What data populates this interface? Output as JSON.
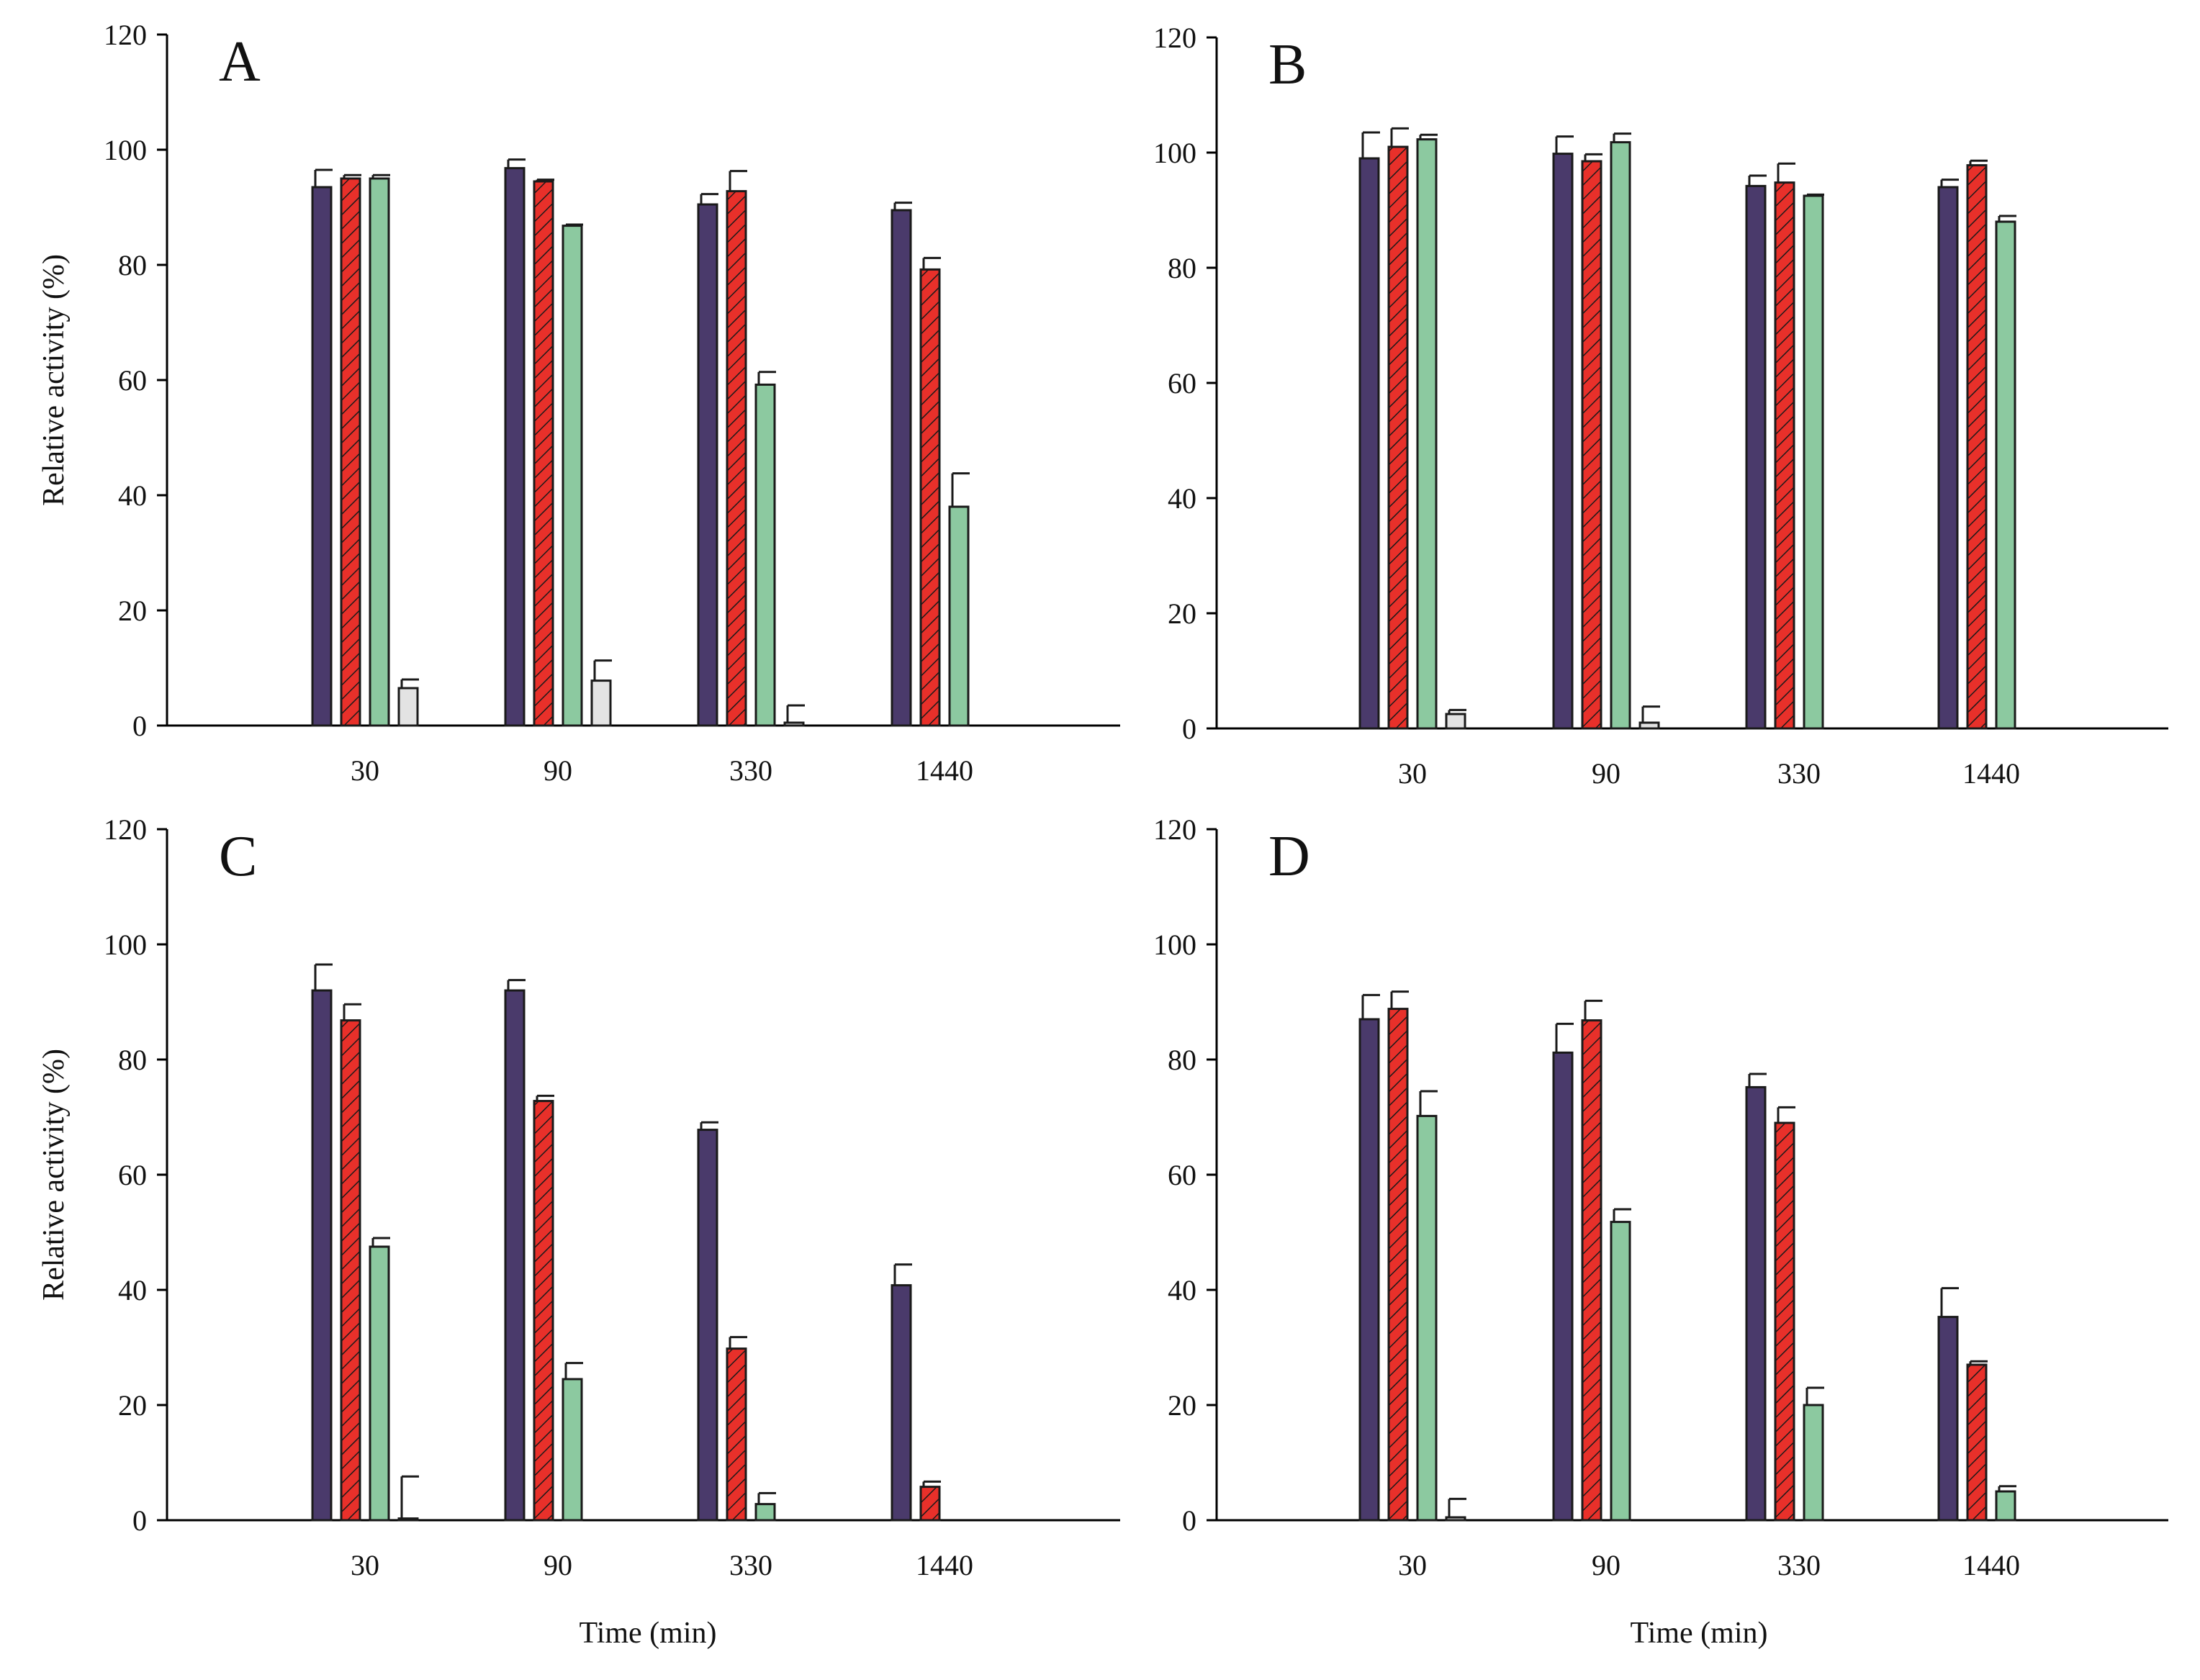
{
  "figure": {
    "xlabel": "Time (min)",
    "ylabel": "Relative activity (%)"
  },
  "series_styles": [
    {
      "name": "series 1",
      "color": "#4a3a6b",
      "pattern": "solid"
    },
    {
      "name": "series 2",
      "color": "#e8302a",
      "pattern": "hatched"
    },
    {
      "name": "series 3",
      "color": "#8cc9a0",
      "pattern": "solid"
    },
    {
      "name": "series 4",
      "color": "#e3e3e3",
      "pattern": "solid"
    }
  ],
  "chart_data": [
    {
      "type": "bar",
      "panel": "A",
      "categories": [
        "30",
        "90",
        "330",
        "1440"
      ],
      "xlabel": "",
      "ylabel": "Relative activity (%)",
      "ylim": [
        0,
        120
      ],
      "yticks": [
        "0",
        "20",
        "40",
        "60",
        "80",
        "100",
        "120"
      ],
      "series": [
        {
          "name": "series 1",
          "values": [
            93.5,
            96.8,
            90.5,
            89.5
          ],
          "errors": [
            3.0,
            1.5,
            1.8,
            1.3
          ]
        },
        {
          "name": "series 2",
          "values": [
            95.0,
            94.5,
            92.8,
            79.2
          ],
          "errors": [
            0.6,
            0.3,
            3.5,
            2.0
          ]
        },
        {
          "name": "series 3",
          "values": [
            95.0,
            86.8,
            59.2,
            38.0
          ],
          "errors": [
            0.6,
            0.2,
            2.2,
            5.8
          ]
        },
        {
          "name": "series 4",
          "values": [
            6.5,
            7.8,
            0.5,
            null
          ],
          "errors": [
            1.5,
            3.5,
            3.0,
            null
          ]
        }
      ]
    },
    {
      "type": "bar",
      "panel": "B",
      "categories": [
        "30",
        "90",
        "330",
        "1440"
      ],
      "xlabel": "",
      "ylabel": "",
      "ylim": [
        0,
        120
      ],
      "yticks": [
        "0",
        "20",
        "40",
        "60",
        "80",
        "100",
        "120"
      ],
      "series": [
        {
          "name": "series 1",
          "values": [
            99.0,
            99.8,
            94.2,
            94.0
          ],
          "errors": [
            4.5,
            3.0,
            1.8,
            1.3
          ]
        },
        {
          "name": "series 2",
          "values": [
            101.0,
            98.5,
            94.8,
            97.8
          ],
          "errors": [
            3.2,
            1.2,
            3.3,
            0.8
          ]
        },
        {
          "name": "series 3",
          "values": [
            102.3,
            101.8,
            92.5,
            88.0
          ],
          "errors": [
            0.8,
            1.5,
            0.2,
            1.0
          ]
        },
        {
          "name": "series 4",
          "values": [
            2.5,
            1.0,
            null,
            null
          ],
          "errors": [
            0.7,
            2.8,
            null,
            null
          ]
        }
      ]
    },
    {
      "type": "bar",
      "panel": "C",
      "categories": [
        "30",
        "90",
        "330",
        "1440"
      ],
      "xlabel": "Time (min)",
      "ylabel": "Relative activity (%)",
      "ylim": [
        0,
        120
      ],
      "yticks": [
        "0",
        "20",
        "40",
        "60",
        "80",
        "100",
        "120"
      ],
      "series": [
        {
          "name": "series 1",
          "values": [
            92.0,
            92.0,
            67.8,
            40.8
          ],
          "errors": [
            4.5,
            1.8,
            1.3,
            3.6
          ]
        },
        {
          "name": "series 2",
          "values": [
            86.8,
            72.8,
            29.8,
            5.8
          ],
          "errors": [
            2.8,
            0.9,
            2.0,
            0.9
          ]
        },
        {
          "name": "series 3",
          "values": [
            47.5,
            24.5,
            2.8,
            null
          ],
          "errors": [
            1.5,
            2.8,
            1.9,
            null
          ]
        },
        {
          "name": "series 4",
          "values": [
            0.3,
            null,
            null,
            null
          ],
          "errors": [
            7.3,
            null,
            null,
            null
          ]
        }
      ]
    },
    {
      "type": "bar",
      "panel": "D",
      "categories": [
        "30",
        "90",
        "330",
        "1440"
      ],
      "xlabel": "Time (min)",
      "ylabel": "",
      "ylim": [
        0,
        120
      ],
      "yticks": [
        "0",
        "20",
        "40",
        "60",
        "80",
        "100",
        "120"
      ],
      "series": [
        {
          "name": "series 1",
          "values": [
            87.0,
            81.2,
            75.2,
            35.3
          ],
          "errors": [
            4.2,
            5.0,
            2.3,
            5.0
          ]
        },
        {
          "name": "series 2",
          "values": [
            88.8,
            86.8,
            69.0,
            27.0
          ],
          "errors": [
            3.0,
            3.4,
            2.7,
            0.6
          ]
        },
        {
          "name": "series 3",
          "values": [
            70.2,
            51.8,
            20.0,
            5.0
          ],
          "errors": [
            4.3,
            2.2,
            3.0,
            0.9
          ]
        },
        {
          "name": "series 4",
          "values": [
            0.5,
            null,
            null,
            null
          ],
          "errors": [
            3.2,
            null,
            null,
            null
          ]
        }
      ]
    }
  ]
}
